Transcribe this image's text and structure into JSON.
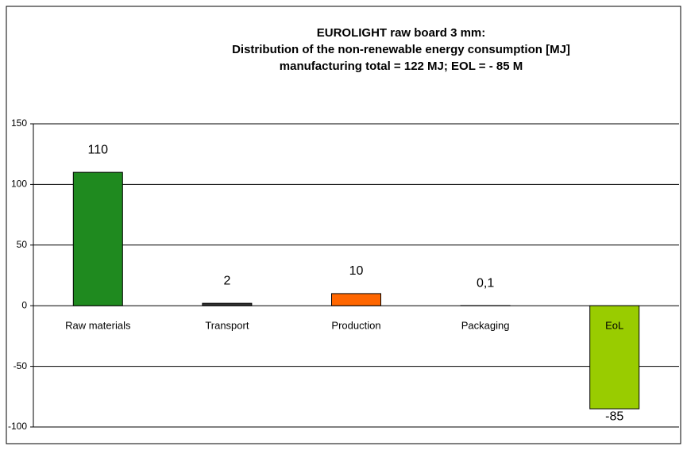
{
  "chart_data": {
    "type": "bar",
    "title": [
      "EUROLIGHT raw board 3 mm:",
      "Distribution of the non-renewable energy consumption [MJ]",
      "manufacturing total =  122 MJ; EOL = - 85 M"
    ],
    "categories": [
      "Raw materials",
      "Transport",
      "Production",
      "Packaging",
      "EoL"
    ],
    "values": [
      110,
      2,
      10,
      0.1,
      -85
    ],
    "value_labels": [
      "110",
      "2",
      "10",
      "0,1",
      "-85"
    ],
    "colors": [
      "#1f8a1f",
      "#333333",
      "#ff6600",
      "#333333",
      "#99cc00"
    ],
    "ylim": [
      -100,
      150
    ],
    "yticks": [
      -100,
      -50,
      0,
      50,
      100,
      150
    ],
    "grid": true
  }
}
